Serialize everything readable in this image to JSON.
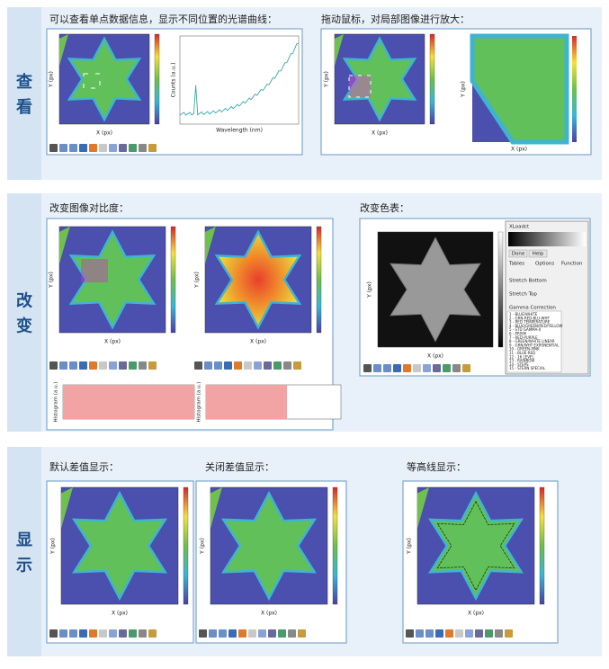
{
  "sections": [
    {
      "label": "查看",
      "captions": [
        "可以查看单点数据信息，显示不同位置的光谱曲线：",
        "拖动鼠标，对局部图像进行放大："
      ]
    },
    {
      "label": "改变",
      "captions": [
        "改变图像对比度：",
        "改变色表："
      ]
    },
    {
      "label": "显示",
      "captions": [
        "默认差值显示：",
        "关闭差值显示：",
        "等高线显示："
      ]
    }
  ],
  "axis_labels": {
    "x": "X (px)",
    "y": "Y (px)",
    "wavelength": "Wavelength (nm)",
    "counts": "Counts (a.u.)",
    "histogram": "Histogram (a.u.)"
  },
  "color_dialog": {
    "title": "XLoadct",
    "buttons": [
      "Done",
      "Help"
    ],
    "tabs": [
      "Tables",
      "Options",
      "Function"
    ],
    "fields": [
      "Stretch Bottom",
      "Stretch Top",
      "Gamma Correction"
    ],
    "tables": [
      "1 - BLUE/WHITE",
      "2 - GRN-RED-BLU-WHT",
      "3 - RED TEMPERATURE",
      "4 - BLUE/GREEN/RED/YELLOW",
      "5 - STD GAMMA-II",
      "6 - PRISM",
      "7 - RED-PURPLE",
      "8 - GREEN/WHITE LINEAR",
      "9 - GRN/WHT EXPONENTIAL",
      "10 - GREEN-PINK",
      "11 - BLUE-RED",
      "12 - 16 LEVEL",
      "13 - RAINBOW",
      "14 - STEPS",
      "15 - STERN SPECIAL"
    ]
  }
}
